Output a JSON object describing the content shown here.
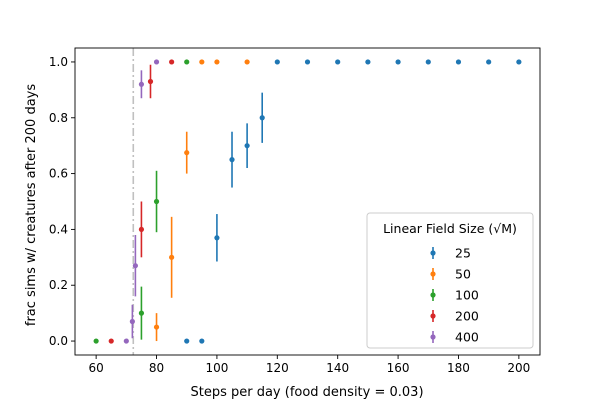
{
  "chart_data": {
    "type": "scatter",
    "title": "",
    "xlabel": "Steps per day (food density = 0.03)",
    "ylabel": "frac sims w/ creatures after 200 days",
    "xlim": [
      53,
      207
    ],
    "ylim": [
      -0.05,
      1.05
    ],
    "xticks": [
      60,
      80,
      100,
      120,
      140,
      160,
      180,
      200
    ],
    "yticks": [
      0.0,
      0.2,
      0.4,
      0.6,
      0.8,
      1.0
    ],
    "ytick_labels": [
      "0.0",
      "0.2",
      "0.4",
      "0.6",
      "0.8",
      "1.0"
    ],
    "vline": {
      "x": 72.3,
      "style": "dashdot",
      "color": "#c0c0c0"
    },
    "grid": false,
    "legend": {
      "title": "Linear Field Size",
      "title_math": "(√M)",
      "placement": "lower right"
    },
    "series": [
      {
        "name": "25",
        "color": "#1f77b4",
        "points": [
          {
            "x": 90,
            "y": 0.0,
            "err": 0
          },
          {
            "x": 95,
            "y": 0.0,
            "err": 0
          },
          {
            "x": 100,
            "y": 0.37,
            "err": 0.085
          },
          {
            "x": 105,
            "y": 0.65,
            "err": 0.1
          },
          {
            "x": 110,
            "y": 0.7,
            "err": 0.08
          },
          {
            "x": 115,
            "y": 0.8,
            "err": 0.09
          },
          {
            "x": 120,
            "y": 1.0,
            "err": 0
          },
          {
            "x": 130,
            "y": 1.0,
            "err": 0
          },
          {
            "x": 140,
            "y": 1.0,
            "err": 0
          },
          {
            "x": 150,
            "y": 1.0,
            "err": 0
          },
          {
            "x": 160,
            "y": 1.0,
            "err": 0
          },
          {
            "x": 170,
            "y": 1.0,
            "err": 0
          },
          {
            "x": 180,
            "y": 1.0,
            "err": 0
          },
          {
            "x": 190,
            "y": 1.0,
            "err": 0
          },
          {
            "x": 200,
            "y": 1.0,
            "err": 0
          }
        ]
      },
      {
        "name": "50",
        "color": "#ff7f0e",
        "points": [
          {
            "x": 80,
            "y": 0.05,
            "err": 0.05
          },
          {
            "x": 85,
            "y": 0.3,
            "err": 0.145
          },
          {
            "x": 90,
            "y": 0.675,
            "err": 0.075
          },
          {
            "x": 95,
            "y": 1.0,
            "err": 0
          },
          {
            "x": 100,
            "y": 1.0,
            "err": 0
          },
          {
            "x": 110,
            "y": 1.0,
            "err": 0
          }
        ]
      },
      {
        "name": "100",
        "color": "#2ca02c",
        "points": [
          {
            "x": 60,
            "y": 0.0,
            "err": 0
          },
          {
            "x": 75,
            "y": 0.1,
            "err": 0.095
          },
          {
            "x": 80,
            "y": 0.5,
            "err": 0.11
          },
          {
            "x": 90,
            "y": 1.0,
            "err": 0
          }
        ]
      },
      {
        "name": "200",
        "color": "#d62728",
        "points": [
          {
            "x": 65,
            "y": 0.0,
            "err": 0
          },
          {
            "x": 75,
            "y": 0.4,
            "err": 0.1
          },
          {
            "x": 78,
            "y": 0.93,
            "err": 0.06
          },
          {
            "x": 85,
            "y": 1.0,
            "err": 0
          }
        ]
      },
      {
        "name": "400",
        "color": "#9467bd",
        "points": [
          {
            "x": 70,
            "y": 0.0,
            "err": 0
          },
          {
            "x": 72,
            "y": 0.07,
            "err": 0.06
          },
          {
            "x": 73,
            "y": 0.27,
            "err": 0.11
          },
          {
            "x": 75,
            "y": 0.92,
            "err": 0.05
          },
          {
            "x": 80,
            "y": 1.0,
            "err": 0
          }
        ]
      }
    ]
  }
}
